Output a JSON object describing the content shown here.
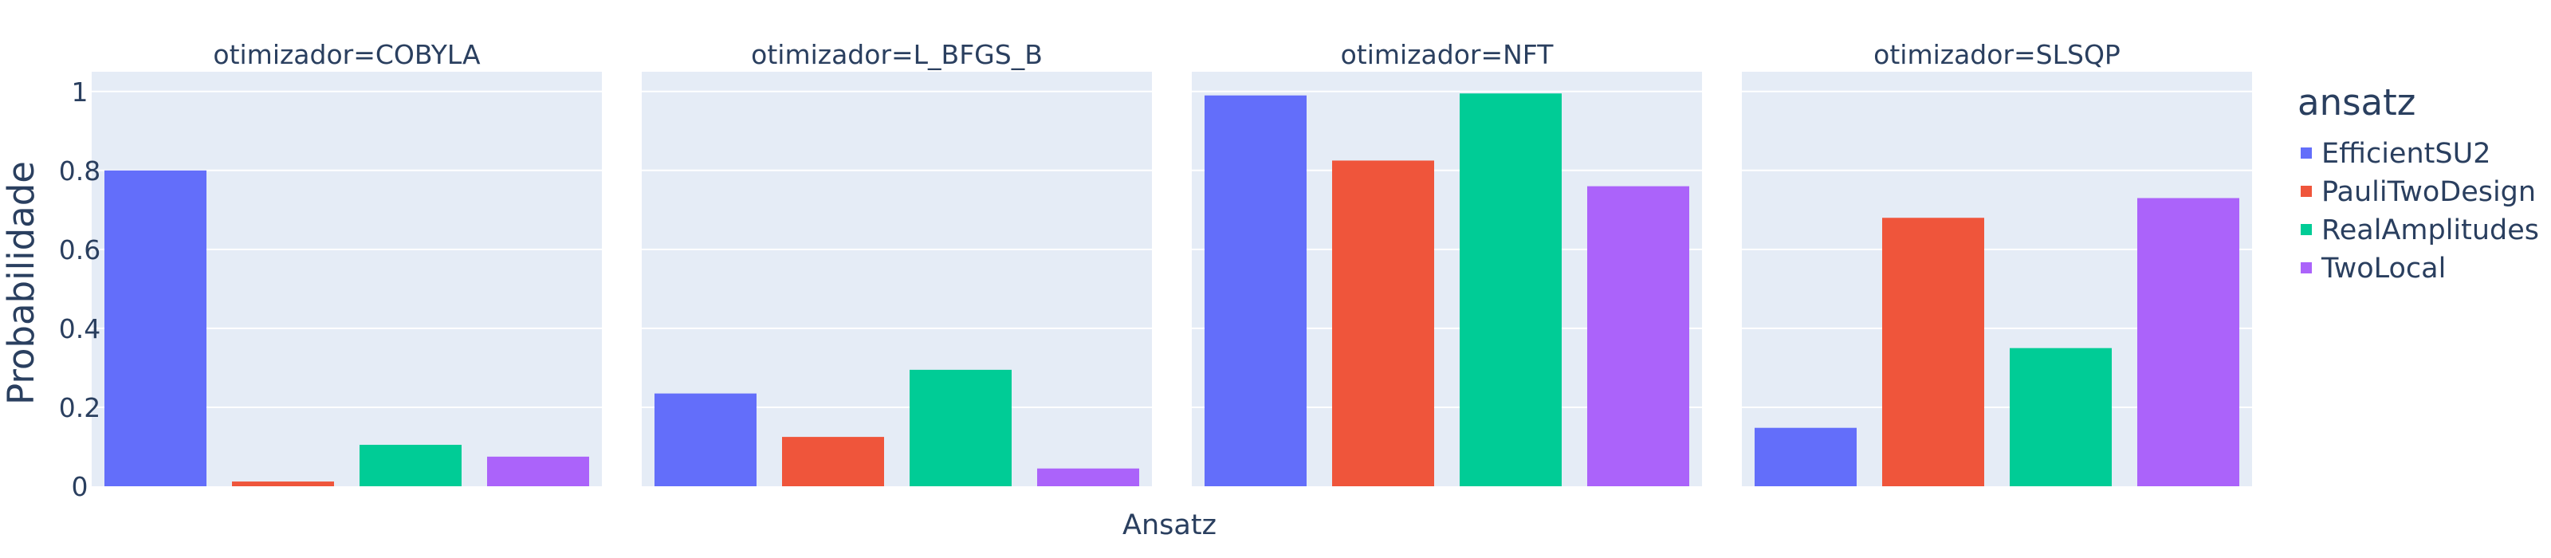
{
  "chart_data": {
    "type": "bar",
    "facet_variable": "otimizador",
    "facet_titles": [
      "otimizador=COBYLA",
      "otimizador=L_BFGS_B",
      "otimizador=NFT",
      "otimizador=SLSQP"
    ],
    "categories": [
      "EfficientSU2",
      "PauliTwoDesign",
      "RealAmplitudes",
      "TwoLocal"
    ],
    "facets": [
      {
        "name": "COBYLA",
        "values": [
          0.8,
          0.012,
          0.105,
          0.075
        ]
      },
      {
        "name": "L_BFGS_B",
        "values": [
          0.235,
          0.125,
          0.295,
          0.045
        ]
      },
      {
        "name": "NFT",
        "values": [
          0.99,
          0.825,
          0.995,
          0.76
        ]
      },
      {
        "name": "SLSQP",
        "values": [
          0.148,
          0.68,
          0.35,
          0.73
        ]
      }
    ],
    "xlabel": "Ansatz",
    "ylabel": "Probabilidade",
    "ylim": [
      0,
      1.05
    ],
    "yticks": [
      0,
      0.2,
      0.4,
      0.6,
      0.8,
      1
    ],
    "ytick_labels": [
      "0",
      "0.2",
      "0.4",
      "0.6",
      "0.8",
      "1"
    ],
    "legend_title": "ansatz",
    "legend_position": "right",
    "grid": true,
    "colors": [
      "#636efa",
      "#ef553b",
      "#00cc96",
      "#ab63fa"
    ],
    "plot_bg": "#e5ecf6"
  }
}
